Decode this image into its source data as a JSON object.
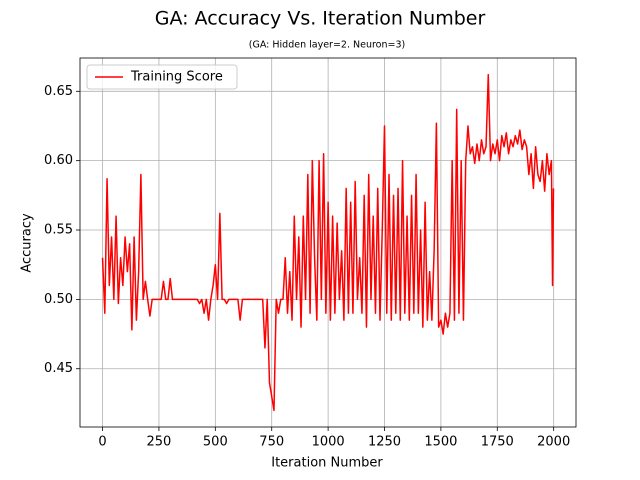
{
  "chart_data": {
    "type": "line",
    "title": "GA: Accuracy Vs. Iteration Number",
    "subtitle": "(GA: Hidden layer=2. Neuron=3)",
    "x_label": "Iteration Number",
    "y_label": "Accuracy",
    "xlim": [
      -99.95,
      2098.95
    ],
    "ylim": [
      0.408,
      0.674
    ],
    "xticks": [
      0,
      250,
      500,
      750,
      1000,
      1250,
      1500,
      1750,
      2000
    ],
    "yticks": [
      0.45,
      {
        "value": 0.5,
        "label": "0.50"
      },
      0.55,
      {
        "value": 0.6,
        "label": "0.60"
      },
      0.65
    ],
    "grid": true,
    "legend": "upper left",
    "x": [
      0,
      10,
      20,
      30,
      40,
      50,
      60,
      70,
      80,
      90,
      100,
      110,
      120,
      130,
      140,
      150,
      160,
      170,
      180,
      190,
      200,
      210,
      220,
      230,
      240,
      250,
      260,
      270,
      280,
      290,
      300,
      310,
      320,
      330,
      340,
      350,
      360,
      370,
      380,
      390,
      400,
      410,
      420,
      430,
      440,
      450,
      460,
      470,
      480,
      490,
      500,
      510,
      520,
      530,
      540,
      550,
      560,
      570,
      580,
      590,
      600,
      610,
      620,
      630,
      640,
      650,
      660,
      670,
      680,
      690,
      700,
      710,
      720,
      730,
      740,
      750,
      760,
      770,
      780,
      790,
      800,
      810,
      820,
      830,
      840,
      850,
      860,
      870,
      880,
      890,
      900,
      910,
      920,
      930,
      940,
      950,
      960,
      970,
      980,
      990,
      1000,
      1010,
      1020,
      1030,
      1040,
      1050,
      1060,
      1070,
      1080,
      1090,
      1100,
      1110,
      1120,
      1130,
      1140,
      1150,
      1160,
      1170,
      1180,
      1190,
      1200,
      1210,
      1220,
      1230,
      1240,
      1250,
      1260,
      1270,
      1280,
      1290,
      1300,
      1310,
      1320,
      1330,
      1340,
      1350,
      1360,
      1370,
      1380,
      1390,
      1400,
      1410,
      1420,
      1430,
      1440,
      1450,
      1460,
      1470,
      1480,
      1490,
      1500,
      1510,
      1520,
      1530,
      1540,
      1550,
      1560,
      1570,
      1580,
      1590,
      1600,
      1610,
      1620,
      1630,
      1640,
      1650,
      1660,
      1670,
      1680,
      1690,
      1700,
      1710,
      1720,
      1730,
      1740,
      1750,
      1760,
      1770,
      1780,
      1790,
      1800,
      1810,
      1820,
      1830,
      1840,
      1850,
      1860,
      1870,
      1880,
      1890,
      1900,
      1910,
      1920,
      1930,
      1940,
      1950,
      1960,
      1970,
      1980,
      1990,
      1995,
      1999
    ],
    "series": [
      {
        "name": "Training Score",
        "color": "#ff0000",
        "values": [
          0.53,
          0.49,
          0.587,
          0.51,
          0.545,
          0.5,
          0.56,
          0.497,
          0.53,
          0.51,
          0.545,
          0.52,
          0.54,
          0.478,
          0.545,
          0.485,
          0.52,
          0.59,
          0.5,
          0.513,
          0.5,
          0.488,
          0.5,
          0.5,
          0.5,
          0.5,
          0.5,
          0.513,
          0.5,
          0.5,
          0.515,
          0.5,
          0.5,
          0.5,
          0.5,
          0.5,
          0.5,
          0.5,
          0.5,
          0.5,
          0.5,
          0.5,
          0.5,
          0.497,
          0.5,
          0.49,
          0.5,
          0.485,
          0.5,
          0.51,
          0.525,
          0.5,
          0.562,
          0.5,
          0.5,
          0.497,
          0.5,
          0.5,
          0.5,
          0.5,
          0.5,
          0.485,
          0.5,
          0.5,
          0.5,
          0.5,
          0.5,
          0.5,
          0.5,
          0.5,
          0.5,
          0.5,
          0.465,
          0.5,
          0.44,
          0.43,
          0.42,
          0.5,
          0.49,
          0.5,
          0.5,
          0.53,
          0.49,
          0.52,
          0.485,
          0.56,
          0.5,
          0.545,
          0.48,
          0.56,
          0.5,
          0.59,
          0.49,
          0.6,
          0.53,
          0.485,
          0.6,
          0.5,
          0.605,
          0.49,
          0.57,
          0.485,
          0.56,
          0.49,
          0.555,
          0.5,
          0.535,
          0.485,
          0.58,
          0.49,
          0.57,
          0.49,
          0.585,
          0.5,
          0.53,
          0.49,
          0.575,
          0.48,
          0.59,
          0.5,
          0.56,
          0.49,
          0.58,
          0.485,
          0.55,
          0.625,
          0.49,
          0.59,
          0.485,
          0.575,
          0.49,
          0.58,
          0.485,
          0.6,
          0.49,
          0.56,
          0.485,
          0.575,
          0.49,
          0.59,
          0.49,
          0.55,
          0.48,
          0.57,
          0.485,
          0.52,
          0.485,
          0.535,
          0.627,
          0.48,
          0.485,
          0.475,
          0.49,
          0.48,
          0.49,
          0.6,
          0.485,
          0.637,
          0.49,
          0.6,
          0.485,
          0.6,
          0.625,
          0.605,
          0.61,
          0.598,
          0.612,
          0.6,
          0.615,
          0.605,
          0.61,
          0.662,
          0.6,
          0.612,
          0.605,
          0.615,
          0.6,
          0.618,
          0.61,
          0.62,
          0.605,
          0.615,
          0.61,
          0.618,
          0.612,
          0.622,
          0.608,
          0.615,
          0.61,
          0.59,
          0.605,
          0.58,
          0.61,
          0.59,
          0.585,
          0.6,
          0.578,
          0.605,
          0.59,
          0.6,
          0.51,
          0.58
        ]
      }
    ]
  }
}
